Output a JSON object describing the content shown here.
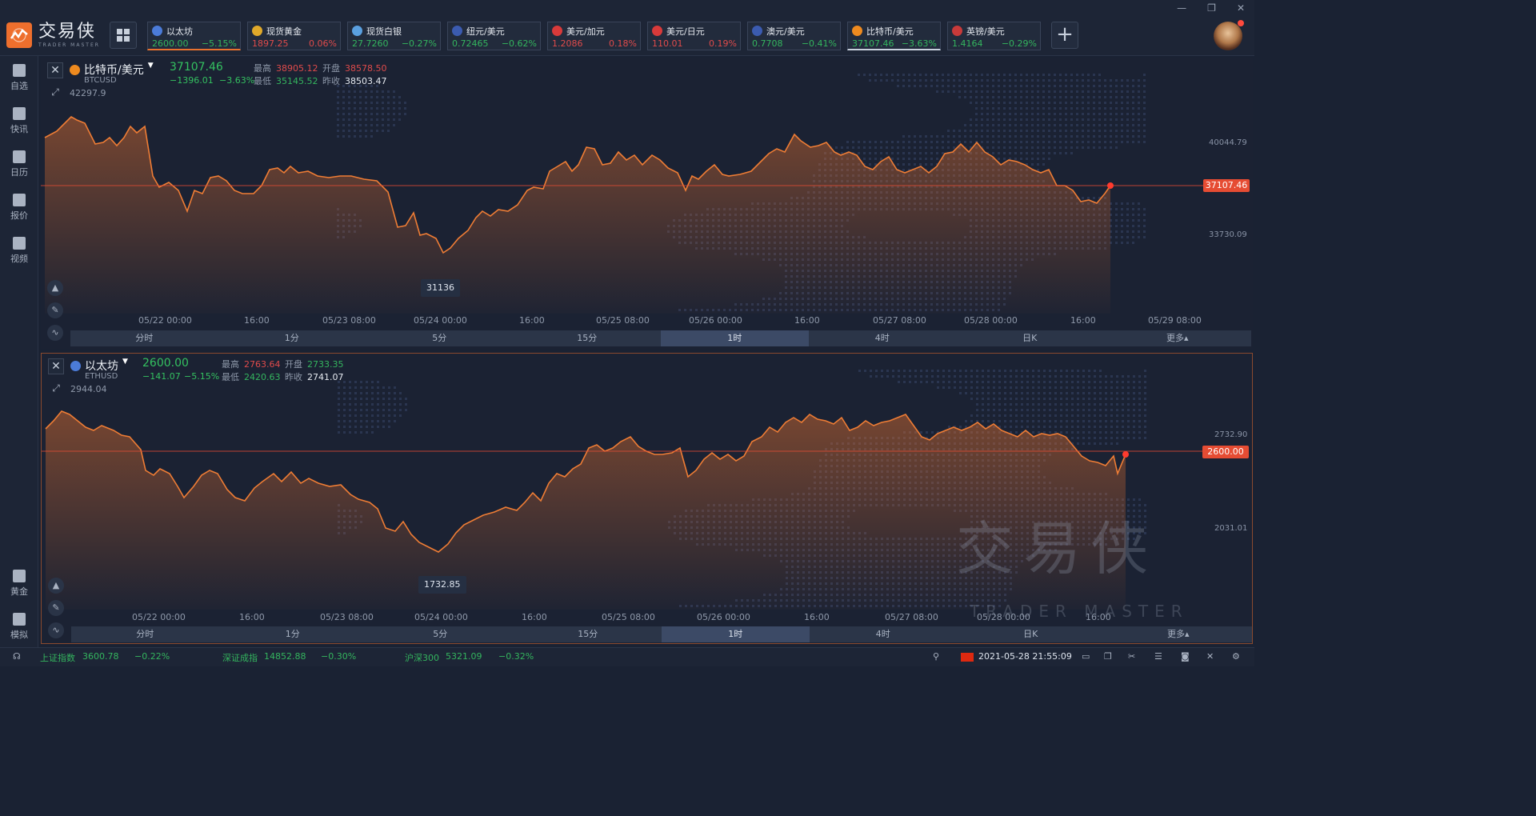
{
  "app": {
    "logo_cn": "交易侠",
    "logo_en": "TRADER MASTER"
  },
  "window_controls": [
    "—",
    "❐",
    "✕"
  ],
  "tickers": [
    {
      "name": "以太坊",
      "price": "2600.00",
      "change": "−5.15%",
      "dir": "dn",
      "icon_color": "#4b7bd8",
      "icon": "ethereum-icon"
    },
    {
      "name": "现货黄金",
      "price": "1897.25",
      "change": "0.06%",
      "dir": "up",
      "icon_color": "#e0a92a",
      "icon": "gold-icon"
    },
    {
      "name": "现货白银",
      "price": "27.7260",
      "change": "−0.27%",
      "dir": "dn",
      "icon_color": "#5aa0e0",
      "icon": "silver-icon"
    },
    {
      "name": "纽元/美元",
      "price": "0.72465",
      "change": "−0.62%",
      "dir": "dn",
      "icon_color": "#3b5bb0",
      "icon": "nzd-flag-icon"
    },
    {
      "name": "美元/加元",
      "price": "1.2086",
      "change": "0.18%",
      "dir": "up",
      "icon_color": "#d83a3a",
      "icon": "cad-flag-icon"
    },
    {
      "name": "美元/日元",
      "price": "110.01",
      "change": "0.19%",
      "dir": "up",
      "icon_color": "#d83a3a",
      "icon": "jpy-flag-icon"
    },
    {
      "name": "澳元/美元",
      "price": "0.7708",
      "change": "−0.41%",
      "dir": "dn",
      "icon_color": "#3b5bb0",
      "icon": "aud-flag-icon"
    },
    {
      "name": "比特币/美元",
      "price": "37107.46",
      "change": "−3.63%",
      "dir": "dn",
      "icon_color": "#ee8a1f",
      "icon": "bitcoin-icon"
    },
    {
      "name": "英镑/美元",
      "price": "1.4164",
      "change": "−0.29%",
      "dir": "dn",
      "icon_color": "#c83a3a",
      "icon": "gbp-flag-icon"
    }
  ],
  "sidebar": [
    {
      "label": "自选",
      "icon": "favorite-icon"
    },
    {
      "label": "快讯",
      "icon": "news-icon"
    },
    {
      "label": "日历",
      "icon": "calendar-icon"
    },
    {
      "label": "报价",
      "icon": "quote-icon"
    },
    {
      "label": "视频",
      "icon": "video-icon"
    },
    {
      "label": "黄金",
      "icon": "gold-tab-icon"
    },
    {
      "label": "模拟",
      "icon": "simulate-icon"
    }
  ],
  "panel1": {
    "name": "比特币/美元",
    "code": "BTCUSD",
    "price": "37107.46",
    "change_abs": "−1396.01",
    "change_pct": "−3.63%",
    "high_label": "最高",
    "high": "38905.12",
    "open_label": "开盘",
    "open": "38578.50",
    "low_label": "最低",
    "low": "35145.52",
    "prev_label": "昨收",
    "prev": "38503.47",
    "hi_ref": "42297.9",
    "low_tag": "31136",
    "y_labels": [
      "40044.79",
      "33730.09"
    ],
    "current_tag": "37107.46",
    "x_labels": [
      "05/22 00:00",
      "16:00",
      "05/23 08:00",
      "05/24 00:00",
      "16:00",
      "05/25 08:00",
      "05/26 00:00",
      "16:00",
      "05/27 08:00",
      "05/28 00:00",
      "16:00",
      "05/29 08:00"
    ]
  },
  "panel2": {
    "name": "以太坊",
    "code": "ETHUSD",
    "price": "2600.00",
    "change_abs": "−141.07",
    "change_pct": "−5.15%",
    "high_label": "最高",
    "high": "2763.64",
    "open_label": "开盘",
    "open": "2733.35",
    "low_label": "最低",
    "low": "2420.63",
    "prev_label": "昨收",
    "prev": "2741.07",
    "hi_ref": "2944.04",
    "low_tag": "1732.85",
    "y_labels": [
      "2732.90",
      "2031.01"
    ],
    "current_tag": "2600.00",
    "x_labels": [
      "05/22 00:00",
      "16:00",
      "05/23 08:00",
      "05/24 00:00",
      "16:00",
      "05/25 08:00",
      "05/26 00:00",
      "16:00",
      "05/27 08:00",
      "05/28 00:00",
      "16:00"
    ]
  },
  "timeframes": [
    "分时",
    "1分",
    "5分",
    "15分",
    "1时",
    "4时",
    "日K",
    "更多▴"
  ],
  "timeframe_selected": "1时",
  "statusbar": {
    "idx1_name": "上证指数",
    "idx1_val": "3600.78",
    "idx1_chg": "−0.22%",
    "idx2_name": "深证成指",
    "idx2_val": "14852.88",
    "idx2_chg": "−0.30%",
    "idx3_name": "沪深300",
    "idx3_val": "5321.09",
    "idx3_chg": "−0.32%",
    "datetime": "2021-05-28 21:55:09"
  },
  "watermark": {
    "cn": "交易侠",
    "en": "TRADER MASTER"
  },
  "colors": {
    "accent": "#e8722e",
    "up": "#e04b4b",
    "down": "#34b55e",
    "line": "#ef7d35"
  }
}
